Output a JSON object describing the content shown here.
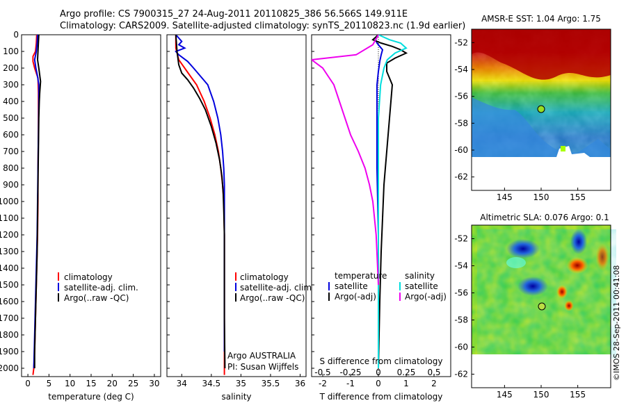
{
  "header": {
    "line1": "Argo profile: CS 7900315_27 24-Aug-2011 20110825_386 56.566S 149.911E",
    "line2": "Climatology: CARS2009. Satellite-adjusted climatology: synTS_20110823.nc (1.9d earlier)"
  },
  "colors": {
    "climatology": "#ff0000",
    "satellite": "#0000dd",
    "argo": "#000000",
    "sat_salinity": "#00dddd",
    "argo_salinity_adj": "#ee00ee"
  },
  "depth_ticks": [
    0,
    100,
    200,
    300,
    400,
    500,
    600,
    700,
    800,
    900,
    1000,
    1100,
    1200,
    1300,
    1400,
    1500,
    1600,
    1700,
    1800,
    1900,
    2000
  ],
  "temperature_panel": {
    "xlabel": "temperature (deg C)",
    "xlim": [
      -1.5,
      31.5
    ],
    "xticks": [
      "0",
      "5",
      "10",
      "15",
      "20",
      "25",
      "30"
    ],
    "legend": [
      "climatology",
      "satellite-adj. clim.",
      "Argo(..raw -QC)"
    ]
  },
  "salinity_panel": {
    "xlabel": "salinity",
    "xlim": [
      33.75,
      36.1
    ],
    "xticks": [
      "34",
      "34.5",
      "35",
      "35.5",
      "36"
    ],
    "legend": [
      "climatology",
      "satellite-adj. clim.",
      "Argo(..raw -QC)"
    ],
    "note1": "Argo AUSTRALIA",
    "note2": "PI: Susan Wijffels"
  },
  "diff_panel": {
    "xlabel": "T difference from climatology",
    "xlabel2": "S difference from climatology",
    "xlim": [
      -2.4,
      2.6
    ],
    "xticks": [
      "-2",
      "-1",
      "0",
      "1",
      "2"
    ],
    "xticks2": [
      "-0.5",
      "-0.25",
      "0",
      "0.25",
      "0.5"
    ],
    "legend_left_title": "temperature",
    "legend_left": [
      "satellite",
      "Argo(-adj)"
    ],
    "legend_right_title": "salinity",
    "legend_right": [
      "satellite",
      "Argo(-adj)"
    ]
  },
  "sst_map": {
    "title": "AMSR-E SST: 1.04 Argo: 1.75",
    "yticks": [
      "-52",
      "-54",
      "-56",
      "-58",
      "-60",
      "-62"
    ],
    "xticks": [
      "145",
      "150",
      "155"
    ]
  },
  "sla_map": {
    "title": "Altimetric SLA: 0.076 Argo: 0.1",
    "yticks": [
      "-52",
      "-54",
      "-56",
      "-58",
      "-60",
      "-62"
    ],
    "xticks": [
      "145",
      "150",
      "155"
    ]
  },
  "footer": "©IMOS 28-Sep-2011 00:41:08",
  "chart_data": [
    {
      "type": "line",
      "xlabel": "temperature (deg C)",
      "ylabel": "",
      "xlim": [
        -1.5,
        31.5
      ],
      "ylim": [
        2050,
        0
      ],
      "series": [
        {
          "name": "climatology",
          "x": [
            2.1,
            2.0,
            1.8,
            1.2,
            1.2,
            1.6,
            2.4,
            2.5,
            2.5,
            2.5,
            2.4,
            2.4,
            2.3,
            2.2,
            2.1,
            2.0,
            1.9,
            1.8,
            1.7,
            1.6,
            1.5,
            1.4,
            1.2
          ],
          "y": [
            0,
            50,
            100,
            130,
            160,
            200,
            260,
            350,
            450,
            600,
            800,
            1000,
            1200,
            1300,
            1400,
            1500,
            1600,
            1700,
            1800,
            1900,
            1950,
            2000,
            2040
          ]
        },
        {
          "name": "satellite-adj. clim.",
          "x": [
            2.3,
            2.2,
            2.0,
            1.6,
            1.9,
            2.3,
            2.6,
            2.6,
            2.5,
            2.4,
            2.3,
            2.2,
            2.1,
            2.0,
            1.9,
            1.8,
            1.7,
            1.6,
            1.5,
            1.4
          ],
          "y": [
            0,
            50,
            100,
            150,
            200,
            250,
            300,
            400,
            600,
            800,
            1000,
            1200,
            1300,
            1400,
            1500,
            1600,
            1700,
            1800,
            1900,
            2000
          ]
        },
        {
          "name": "Argo(..raw -QC)",
          "x": [
            2.6,
            2.5,
            2.4,
            2.3,
            2.6,
            3.0,
            2.8,
            2.7,
            2.6,
            2.5,
            2.4,
            2.3,
            2.2,
            2.1,
            2.0,
            1.9,
            1.8,
            1.7,
            1.6,
            1.6
          ],
          "y": [
            0,
            50,
            100,
            150,
            200,
            280,
            350,
            400,
            500,
            700,
            900,
            1100,
            1300,
            1400,
            1500,
            1600,
            1700,
            1800,
            1900,
            2000
          ]
        }
      ]
    },
    {
      "type": "line",
      "xlabel": "salinity",
      "ylabel": "",
      "xlim": [
        33.75,
        36.1
      ],
      "ylim": [
        2050,
        0
      ],
      "series": [
        {
          "name": "climatology",
          "x": [
            33.9,
            33.9,
            33.95,
            34.05,
            34.15,
            34.25,
            34.38,
            34.48,
            34.56,
            34.62,
            34.66,
            34.69,
            34.71,
            34.72,
            34.72,
            34.72,
            34.72,
            34.72,
            34.72
          ],
          "y": [
            0,
            80,
            150,
            200,
            250,
            300,
            400,
            500,
            600,
            700,
            800,
            900,
            1000,
            1200,
            1400,
            1600,
            1800,
            1950,
            2040
          ]
        },
        {
          "name": "satellite-adj. clim.",
          "x": [
            33.9,
            34.0,
            33.95,
            34.05,
            33.9,
            33.95,
            34.1,
            34.2,
            34.32,
            34.44,
            34.54,
            34.61,
            34.66,
            34.69,
            34.71,
            34.72,
            34.72,
            34.72,
            34.72
          ],
          "y": [
            0,
            40,
            60,
            80,
            100,
            120,
            160,
            200,
            250,
            300,
            400,
            500,
            600,
            700,
            800,
            900,
            1000,
            1400,
            1900
          ]
        },
        {
          "name": "Argo(..raw -QC)",
          "x": [
            33.9,
            33.92,
            33.95,
            34.0,
            34.1,
            34.2,
            34.3,
            34.4,
            34.5,
            34.58,
            34.64,
            34.68,
            34.7,
            34.71,
            34.72,
            34.72,
            34.72,
            34.73
          ],
          "y": [
            0,
            100,
            180,
            230,
            270,
            320,
            380,
            450,
            550,
            650,
            750,
            850,
            950,
            1050,
            1200,
            1400,
            1700,
            2000
          ]
        }
      ]
    },
    {
      "type": "line",
      "xlabel": "T difference from climatology",
      "ylabel": "",
      "xlim": [
        -2.4,
        2.6
      ],
      "ylim": [
        2050,
        0
      ],
      "series": [
        {
          "name": "temperature satellite",
          "x": [
            0.0,
            -0.1,
            -0.05,
            0.05,
            0.15,
            0.1,
            0.05,
            0.0,
            -0.05,
            -0.05,
            -0.05,
            0.0,
            0.0,
            0.0,
            0.0
          ],
          "y": [
            0,
            30,
            50,
            70,
            90,
            120,
            160,
            220,
            300,
            500,
            800,
            1200,
            1500,
            1800,
            2000
          ]
        },
        {
          "name": "temperature Argo(-adj)",
          "x": [
            0.0,
            -0.2,
            0.1,
            0.5,
            0.8,
            1.0,
            0.6,
            0.3,
            0.3,
            0.5,
            0.4,
            0.3,
            0.2,
            0.15,
            0.1,
            0.05,
            0.0
          ],
          "y": [
            0,
            30,
            50,
            70,
            90,
            110,
            140,
            170,
            220,
            300,
            500,
            700,
            900,
            1100,
            1300,
            1600,
            2000
          ]
        },
        {
          "name": "salinity satellite",
          "x": [
            0.0,
            0.1,
            0.2,
            0.25,
            0.15,
            0.08,
            0.05,
            0.02,
            0.0,
            0.0,
            0.0,
            0.0
          ],
          "y": [
            0,
            30,
            50,
            80,
            110,
            150,
            200,
            300,
            500,
            1000,
            1500,
            2000
          ]
        },
        {
          "name": "salinity Argo(-adj)",
          "x": [
            0.0,
            -0.05,
            -0.2,
            -0.6,
            -0.5,
            -0.45,
            -0.4,
            -0.35,
            -0.3,
            -0.25,
            -0.18,
            -0.12,
            -0.08,
            -0.05,
            -0.02,
            0.0
          ],
          "y": [
            0,
            60,
            120,
            150,
            200,
            250,
            300,
            400,
            500,
            600,
            700,
            800,
            900,
            1000,
            1200,
            1500
          ]
        }
      ]
    }
  ]
}
